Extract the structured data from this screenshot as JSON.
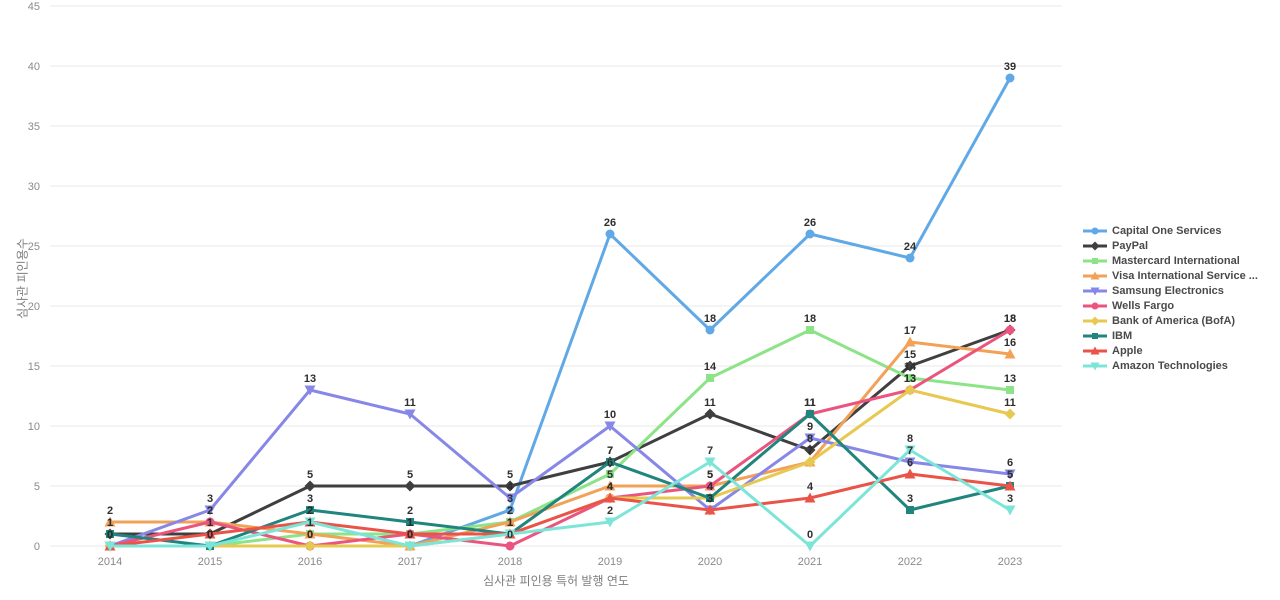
{
  "chart_data": {
    "type": "line",
    "title": "",
    "xlabel": "심사관 피인용 특허 발행 연도",
    "ylabel": "심사관 피인용수",
    "x": [
      2014,
      2015,
      2016,
      2017,
      2018,
      2019,
      2020,
      2021,
      2022,
      2023
    ],
    "ylim": [
      0,
      45
    ],
    "yticks": [
      0,
      5,
      10,
      15,
      20,
      25,
      30,
      35,
      40,
      45
    ],
    "grid": true,
    "legend_position": "right",
    "colors": {
      "grid": "#e8e8e8",
      "tick_text": "#8a8a8a",
      "axis_title_text": "#7d7d7d",
      "data_label_text": "#2e2e2e",
      "legend_text": "#4a4a4a"
    },
    "series": [
      {
        "name": "Capital One Services",
        "color": "#60a9e6",
        "marker": "circle",
        "values": [
          0,
          0,
          0,
          0,
          3,
          26,
          18,
          26,
          24,
          39
        ]
      },
      {
        "name": "PayPal",
        "color": "#3f3f3f",
        "marker": "diamond",
        "values": [
          1,
          1,
          5,
          5,
          5,
          7,
          11,
          8,
          15,
          18
        ]
      },
      {
        "name": "Mastercard International",
        "color": "#8de387",
        "marker": "square",
        "values": [
          0,
          0,
          1,
          1,
          2,
          6,
          14,
          18,
          14,
          13
        ]
      },
      {
        "name": "Visa International Service ...",
        "color": "#f2a158",
        "marker": "triangle-up",
        "values": [
          2,
          2,
          1,
          0,
          2,
          5,
          5,
          7,
          17,
          16
        ]
      },
      {
        "name": "Samsung Electronics",
        "color": "#8787e8",
        "marker": "triangle-down",
        "values": [
          0,
          3,
          13,
          11,
          4,
          10,
          3,
          9,
          7,
          6
        ]
      },
      {
        "name": "Wells Fargo",
        "color": "#ea547e",
        "marker": "circle",
        "values": [
          0,
          2,
          0,
          1,
          0,
          4,
          5,
          11,
          13,
          18
        ]
      },
      {
        "name": "Bank of America (BofA)",
        "color": "#e7c850",
        "marker": "diamond",
        "values": [
          0,
          0,
          0,
          0,
          1,
          4,
          4,
          7,
          13,
          11
        ]
      },
      {
        "name": "IBM",
        "color": "#1f857d",
        "marker": "square",
        "values": [
          1,
          0,
          3,
          2,
          1,
          7,
          4,
          11,
          3,
          5
        ]
      },
      {
        "name": "Apple",
        "color": "#ea5348",
        "marker": "triangle-up",
        "values": [
          0,
          1,
          2,
          1,
          1,
          4,
          3,
          4,
          6,
          5
        ]
      },
      {
        "name": "Amazon Technologies",
        "color": "#7ce5d8",
        "marker": "triangle-down",
        "values": [
          0,
          0,
          2,
          0,
          1,
          2,
          7,
          0,
          8,
          3
        ]
      }
    ]
  }
}
